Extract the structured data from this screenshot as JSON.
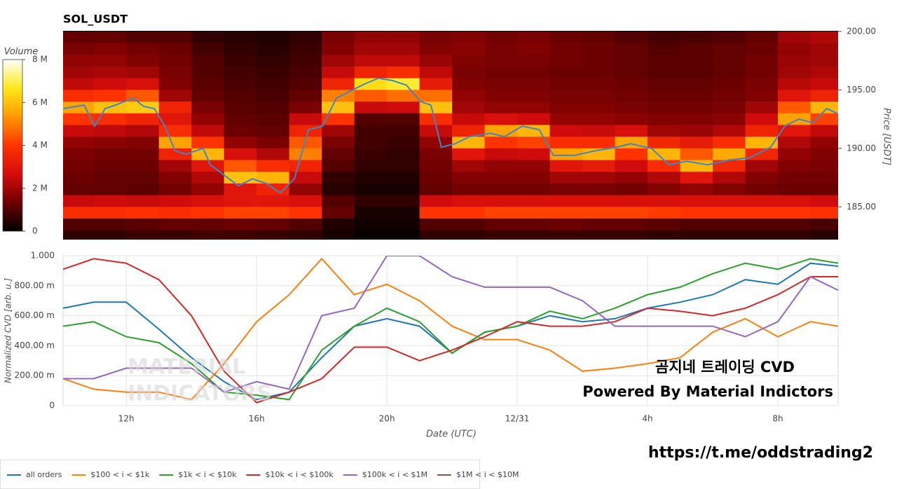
{
  "chart_data": [
    {
      "type": "heatmap",
      "title": "SOL_USDT",
      "x": [
        10.5,
        11.5,
        12.5,
        13.5,
        14.5,
        15.5,
        16.5,
        17.5,
        18.5,
        19.5,
        20.5,
        21.5,
        22.5,
        23.5,
        24.5,
        25.5,
        26.5,
        27.5,
        28.5,
        29.5,
        30.5,
        31.5,
        32.5,
        33.5
      ],
      "y": [
        199.5,
        198.5,
        197.5,
        196.5,
        195.5,
        194.5,
        193.5,
        192.5,
        191.5,
        190.5,
        189.5,
        188.5,
        187.5,
        186.5,
        185.5,
        184.5,
        183.5,
        182.5
      ],
      "z": [
        [
          1.2,
          1.2,
          1.0,
          1.0,
          0.6,
          0.5,
          0.4,
          0.6,
          1.5,
          1.8,
          1.8,
          1.5,
          1.6,
          1.4,
          1.5,
          1.3,
          1.2,
          1.0,
          0.8,
          0.9,
          1.0,
          1.2,
          2.0,
          2.2
        ],
        [
          1.5,
          1.6,
          1.4,
          1.3,
          0.8,
          0.6,
          0.5,
          0.7,
          1.6,
          2.0,
          2.0,
          1.6,
          1.7,
          1.5,
          1.6,
          1.4,
          1.3,
          1.2,
          1.0,
          1.1,
          1.2,
          1.3,
          1.8,
          2.0
        ],
        [
          1.8,
          1.8,
          1.6,
          1.4,
          1.0,
          0.7,
          0.6,
          0.8,
          2.0,
          2.4,
          2.4,
          1.9,
          1.6,
          1.5,
          1.5,
          1.4,
          1.3,
          1.2,
          1.1,
          1.1,
          1.2,
          1.4,
          1.9,
          2.0
        ],
        [
          2.0,
          2.1,
          2.0,
          1.5,
          1.0,
          0.8,
          0.7,
          0.9,
          2.5,
          3.5,
          3.8,
          2.4,
          1.5,
          1.4,
          1.4,
          1.3,
          1.3,
          1.2,
          1.1,
          1.1,
          1.2,
          1.4,
          2.0,
          2.2
        ],
        [
          2.4,
          2.6,
          2.8,
          1.6,
          1.1,
          0.9,
          0.8,
          1.0,
          3.5,
          6.5,
          6.8,
          3.2,
          1.6,
          1.5,
          1.5,
          1.4,
          1.4,
          1.3,
          1.2,
          1.2,
          1.3,
          1.5,
          2.3,
          2.5
        ],
        [
          3.8,
          4.0,
          4.5,
          2.0,
          1.2,
          1.0,
          0.9,
          1.2,
          5.0,
          4.5,
          4.8,
          4.8,
          1.8,
          1.6,
          1.6,
          1.5,
          1.5,
          1.4,
          1.3,
          1.3,
          1.4,
          1.6,
          3.0,
          3.5
        ],
        [
          5.5,
          6.0,
          6.2,
          3.5,
          1.5,
          1.1,
          1.0,
          1.5,
          6.0,
          2.5,
          2.6,
          6.0,
          2.0,
          1.8,
          1.8,
          1.6,
          1.6,
          1.5,
          1.4,
          1.4,
          1.5,
          2.0,
          4.5,
          5.8
        ],
        [
          4.0,
          3.8,
          3.5,
          3.0,
          1.8,
          1.2,
          1.1,
          2.5,
          4.0,
          1.0,
          1.0,
          3.8,
          2.5,
          2.8,
          2.6,
          1.8,
          1.8,
          1.7,
          1.6,
          1.6,
          1.7,
          2.6,
          5.5,
          4.2
        ],
        [
          2.5,
          2.4,
          2.2,
          3.8,
          2.4,
          1.3,
          1.2,
          3.5,
          2.0,
          0.8,
          0.8,
          2.5,
          3.5,
          5.5,
          5.8,
          2.6,
          2.5,
          2.8,
          2.0,
          1.9,
          2.2,
          3.5,
          3.0,
          2.4
        ],
        [
          1.8,
          1.7,
          1.6,
          5.5,
          4.0,
          1.8,
          1.5,
          4.5,
          1.5,
          0.8,
          0.7,
          1.8,
          5.8,
          4.0,
          4.2,
          3.8,
          3.8,
          5.5,
          3.6,
          3.2,
          3.8,
          5.8,
          2.2,
          1.8
        ],
        [
          1.5,
          1.4,
          1.4,
          3.5,
          5.8,
          2.8,
          2.2,
          5.0,
          1.2,
          0.7,
          0.6,
          1.5,
          3.0,
          2.5,
          2.6,
          5.5,
          5.8,
          4.0,
          5.8,
          4.5,
          5.6,
          3.6,
          1.8,
          1.6
        ],
        [
          1.4,
          1.3,
          1.3,
          2.0,
          3.0,
          4.5,
          3.8,
          3.5,
          1.0,
          0.6,
          0.6,
          1.4,
          2.0,
          1.8,
          1.8,
          3.0,
          3.2,
          2.6,
          3.8,
          5.8,
          3.6,
          2.0,
          1.6,
          1.5
        ],
        [
          1.3,
          1.2,
          1.2,
          1.6,
          2.2,
          6.0,
          5.8,
          2.5,
          0.6,
          0.4,
          0.4,
          1.3,
          1.6,
          1.6,
          1.6,
          2.0,
          2.0,
          1.8,
          2.2,
          3.0,
          2.2,
          1.6,
          1.4,
          1.4
        ],
        [
          1.2,
          1.2,
          1.1,
          1.4,
          1.8,
          3.0,
          3.5,
          1.8,
          0.5,
          0.3,
          0.3,
          1.2,
          1.4,
          1.4,
          1.4,
          1.5,
          1.5,
          1.4,
          1.6,
          1.8,
          1.6,
          1.4,
          1.3,
          1.3
        ],
        [
          2.5,
          2.6,
          2.5,
          2.6,
          2.8,
          3.0,
          3.0,
          2.8,
          1.0,
          0.6,
          0.6,
          2.6,
          2.8,
          2.8,
          2.8,
          2.8,
          2.8,
          2.8,
          2.8,
          2.8,
          2.8,
          2.8,
          2.8,
          2.6
        ],
        [
          3.8,
          3.8,
          3.9,
          3.8,
          4.0,
          4.2,
          4.2,
          4.0,
          1.2,
          0.3,
          0.3,
          4.0,
          4.0,
          4.2,
          4.2,
          4.2,
          4.2,
          4.2,
          4.1,
          4.0,
          4.0,
          4.0,
          4.0,
          3.9
        ],
        [
          1.0,
          1.0,
          1.1,
          1.2,
          1.2,
          1.3,
          1.2,
          1.0,
          0.4,
          0.2,
          0.2,
          1.0,
          1.0,
          1.2,
          1.2,
          1.3,
          1.2,
          1.2,
          1.1,
          1.0,
          1.0,
          1.0,
          1.0,
          0.9
        ],
        [
          0.6,
          0.6,
          0.7,
          0.7,
          0.8,
          0.8,
          0.7,
          0.6,
          0.3,
          0.1,
          0.1,
          0.6,
          0.6,
          0.7,
          0.7,
          0.7,
          0.7,
          0.7,
          0.6,
          0.6,
          0.6,
          0.6,
          0.6,
          0.5
        ]
      ],
      "colorscale": [
        "#000000",
        "#6e0000",
        "#d40c0c",
        "#ff3300",
        "#ff9900",
        "#ffe81a",
        "#ffffff"
      ],
      "colorbar_title": "Volume",
      "zlim": [
        0,
        8
      ],
      "zticks": [
        0,
        {
          "value": 2,
          "label": "2 M"
        },
        {
          "value": 4,
          "label": "4 M"
        },
        {
          "value": 6,
          "label": "6 M"
        },
        {
          "value": 8,
          "label": "8 M"
        }
      ],
      "line": {
        "color": "#3f86c4",
        "x": [
          10.06,
          10.71,
          11.03,
          11.35,
          11.67,
          12.21,
          12.53,
          12.86,
          13.18,
          13.5,
          13.83,
          14.36,
          14.58,
          15.01,
          15.44,
          15.87,
          16.3,
          16.73,
          17.16,
          17.59,
          18.02,
          18.45,
          18.88,
          19.31,
          19.74,
          20.17,
          20.6,
          21.03,
          21.35,
          21.67,
          22.1,
          22.53,
          23.18,
          23.61,
          24.15,
          24.68,
          25.11,
          25.76,
          26.4,
          27.05,
          27.48,
          28.12,
          28.66,
          29.2,
          29.84,
          30.49,
          31.13,
          31.78,
          32.21,
          32.64,
          33.07,
          33.5,
          33.82
        ],
        "values": [
          193.4,
          193.7,
          191.9,
          193.4,
          193.7,
          194.3,
          193.6,
          193.4,
          191.9,
          189.8,
          189.5,
          190.0,
          188.6,
          187.7,
          186.8,
          187.4,
          187.0,
          186.2,
          187.4,
          191.6,
          191.9,
          194.3,
          194.9,
          195.5,
          196.0,
          195.8,
          195.4,
          194.0,
          193.7,
          190.1,
          190.4,
          191.0,
          191.3,
          191.0,
          191.9,
          191.6,
          189.4,
          189.4,
          189.8,
          190.1,
          190.4,
          190.0,
          188.6,
          188.9,
          188.6,
          189.0,
          189.2,
          190.1,
          191.9,
          192.5,
          192.2,
          193.4,
          193.0
        ]
      },
      "xlim": [
        10.06,
        33.85
      ],
      "ylim": [
        182.2,
        200.05
      ],
      "yticks": [
        {
          "value": 185,
          "label": "185.00"
        },
        {
          "value": 190,
          "label": "190.00"
        },
        {
          "value": 195,
          "label": "195.00"
        },
        {
          "value": 200,
          "label": "200.00"
        }
      ],
      "y_label": "Price [USDT]"
    },
    {
      "type": "line",
      "x_label": "Date (UTC)",
      "y_label": "Normalized CVD [arb. u.]",
      "x": [
        10.06,
        11,
        12,
        13,
        14,
        15,
        16,
        17,
        18,
        19,
        20,
        21,
        22,
        23,
        24,
        25,
        26,
        27,
        28,
        29,
        30,
        31,
        32,
        33,
        33.85
      ],
      "series": [
        {
          "name": "all orders",
          "color": "#1f77b4",
          "values": [
            0.65,
            0.69,
            0.69,
            0.51,
            0.32,
            0.16,
            0.04,
            0.09,
            0.32,
            0.53,
            0.58,
            0.53,
            0.35,
            0.49,
            0.53,
            0.6,
            0.56,
            0.58,
            0.65,
            0.69,
            0.74,
            0.84,
            0.81,
            0.95,
            0.93
          ]
        },
        {
          "name": "$100 < i < $1k",
          "color": "#ff7f0e",
          "values": [
            0.18,
            0.11,
            0.09,
            0.09,
            0.04,
            0.28,
            0.56,
            0.74,
            0.98,
            0.74,
            0.81,
            0.7,
            0.53,
            0.44,
            0.44,
            0.37,
            0.23,
            0.25,
            0.28,
            0.32,
            0.49,
            0.58,
            0.46,
            0.56,
            0.53
          ]
        },
        {
          "name": "$1k < i < $10k",
          "color": "#2ca02c",
          "values": [
            0.53,
            0.56,
            0.46,
            0.42,
            0.28,
            0.09,
            0.07,
            0.04,
            0.37,
            0.53,
            0.65,
            0.56,
            0.35,
            0.49,
            0.53,
            0.63,
            0.58,
            0.65,
            0.74,
            0.79,
            0.88,
            0.95,
            0.91,
            0.98,
            0.95
          ]
        },
        {
          "name": "$10k < i < $100k",
          "color": "#d62728",
          "values": [
            0.91,
            0.98,
            0.95,
            0.84,
            0.6,
            0.23,
            0.02,
            0.09,
            0.18,
            0.39,
            0.39,
            0.3,
            0.37,
            0.46,
            0.56,
            0.53,
            0.53,
            0.56,
            0.65,
            0.63,
            0.6,
            0.65,
            0.74,
            0.86,
            0.86
          ]
        },
        {
          "name": "$100k < i < $1M",
          "color": "#9467bd",
          "values": [
            0.18,
            0.18,
            0.25,
            0.25,
            0.25,
            0.09,
            0.16,
            0.11,
            0.6,
            0.65,
            1.0,
            1.0,
            0.86,
            0.79,
            0.79,
            0.79,
            0.7,
            0.53,
            0.53,
            0.53,
            0.53,
            0.46,
            0.56,
            0.86,
            0.77
          ]
        },
        {
          "name": "$1M < i < $10M",
          "color": "#8c564b",
          "values": [
            null,
            null,
            null,
            null,
            null,
            null,
            null,
            null,
            null,
            null,
            null,
            null,
            null,
            null,
            null,
            null,
            null,
            null,
            null,
            null,
            null,
            null,
            null,
            null,
            null
          ]
        }
      ],
      "xlim": [
        10.06,
        33.85
      ],
      "xticks": [
        {
          "value": 12,
          "label": "12h"
        },
        {
          "value": 16,
          "label": "16h"
        },
        {
          "value": 20,
          "label": "20h"
        },
        {
          "value": 24,
          "label": "12/31"
        },
        {
          "value": 28,
          "label": "4h"
        },
        {
          "value": 32,
          "label": "8h"
        }
      ],
      "ylim": [
        0,
        1
      ],
      "yticks": [
        0,
        {
          "value": 0.2,
          "label": "200.00 m"
        },
        {
          "value": 0.4,
          "label": "400.00 m"
        },
        {
          "value": 0.6,
          "label": "600.00 m"
        },
        {
          "value": 0.8,
          "label": "800.00 m"
        },
        {
          "value": 1,
          "label": "1.000"
        }
      ],
      "grid": true,
      "legend": "bottom-left",
      "annotations": [
        "곰지네 트레이딩 CVD",
        "Powered By Material Indictors"
      ],
      "watermark": [
        "MATERIAL",
        "INDICATORS"
      ],
      "caption": "https://t.me/oddstrading2"
    }
  ]
}
